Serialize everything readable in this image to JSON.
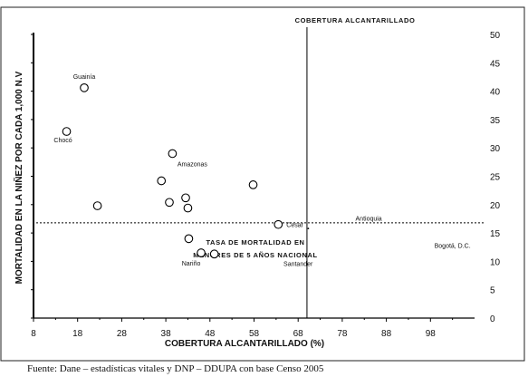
{
  "chart_data": {
    "type": "scatter",
    "title": "",
    "xlabel": "COBERTURA ALCANTARILLADO (%)",
    "ylabel": "MORTALIDAD EN LA NIÑEZ POR CADA 1,000 N.V",
    "xlim": [
      8,
      108
    ],
    "ylim": [
      0,
      50
    ],
    "xticks": [
      8,
      18,
      28,
      38,
      48,
      58,
      68,
      78,
      88,
      98
    ],
    "yticks": [
      0,
      5,
      10,
      15,
      20,
      25,
      30,
      35,
      40,
      45,
      50
    ],
    "y_axis_side": "right",
    "grid": false,
    "reference_lines": {
      "vertical": {
        "x": 70,
        "label": "COBERTURA ALCANTARILLADO"
      },
      "horizontal": {
        "y": 16.8,
        "label_line1": "TASA DE MORTALIDAD EN",
        "label_line2": "MENORES DE 5 AÑOS NACIONAL"
      }
    },
    "points": [
      {
        "x": 19.5,
        "y": 40.6,
        "label": "Guainía"
      },
      {
        "x": 15.5,
        "y": 32.9,
        "label": "Chocó"
      },
      {
        "x": 22.5,
        "y": 19.8,
        "label": ""
      },
      {
        "x": 39.5,
        "y": 29.0,
        "label": "Amazonas"
      },
      {
        "x": 37.0,
        "y": 24.2,
        "label": ""
      },
      {
        "x": 38.8,
        "y": 20.4,
        "label": ""
      },
      {
        "x": 42.5,
        "y": 21.2,
        "label": ""
      },
      {
        "x": 43.0,
        "y": 19.4,
        "label": ""
      },
      {
        "x": 57.8,
        "y": 23.5,
        "label": ""
      },
      {
        "x": 43.2,
        "y": 14.0,
        "label": ""
      },
      {
        "x": 46.0,
        "y": 11.5,
        "label": "Nariño"
      },
      {
        "x": 49.0,
        "y": 11.3,
        "label": ""
      },
      {
        "x": 63.5,
        "y": 16.5,
        "label": "Cesar"
      }
    ],
    "extra_labels": [
      {
        "text": "Antioquia",
        "x": 84,
        "y": 17.2
      },
      {
        "text": "Bogotá, D.C.",
        "x": 103,
        "y": 12.4
      },
      {
        "text": "Santander",
        "x": 68,
        "y": 9.2
      }
    ]
  },
  "footer": {
    "source": "Fuente: Dane – estadísticas vitales y DNP – DDUPA con base Censo 2005"
  }
}
